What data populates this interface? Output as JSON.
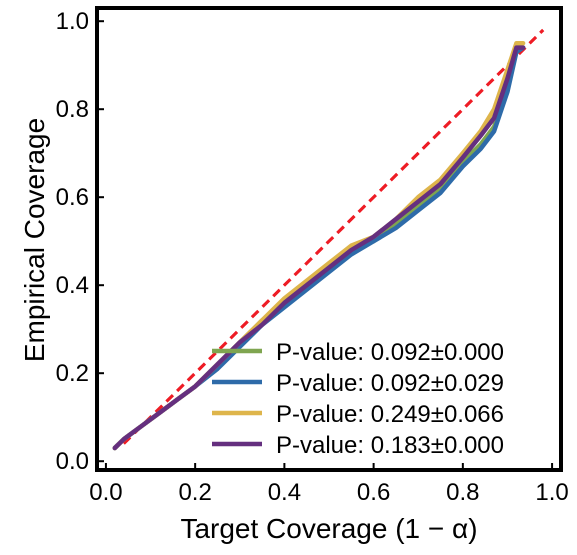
{
  "chart_data": {
    "type": "line",
    "title": "",
    "xlabel": "Target Coverage (1 − α)",
    "ylabel": "Empirical Coverage",
    "xlim": [
      -0.02,
      1.02
    ],
    "ylim": [
      -0.02,
      1.03
    ],
    "xticks": [
      "0.0",
      "0.2",
      "0.4",
      "0.6",
      "0.8",
      "1.0"
    ],
    "yticks": [
      "0.0",
      "0.2",
      "0.4",
      "0.6",
      "0.8",
      "1.0"
    ],
    "grid": false,
    "legend_position": "bottom-right",
    "reference_line": {
      "style": "dashed",
      "color": "#ee1c25",
      "x": [
        0.04,
        0.98
      ],
      "y": [
        0.04,
        0.98
      ]
    },
    "series": [
      {
        "name": "P-value: 0.092±0.000",
        "color": "#7fa550",
        "x": [
          0.02,
          0.04,
          0.08,
          0.12,
          0.16,
          0.2,
          0.25,
          0.3,
          0.35,
          0.4,
          0.45,
          0.5,
          0.55,
          0.6,
          0.65,
          0.7,
          0.75,
          0.8,
          0.84,
          0.87,
          0.9,
          0.92,
          0.935
        ],
        "y": [
          0.03,
          0.05,
          0.08,
          0.11,
          0.14,
          0.17,
          0.22,
          0.27,
          0.32,
          0.36,
          0.4,
          0.44,
          0.48,
          0.5,
          0.54,
          0.58,
          0.62,
          0.68,
          0.72,
          0.76,
          0.85,
          0.94,
          0.94
        ]
      },
      {
        "name": "P-value: 0.092±0.029",
        "color": "#2e6ba9",
        "x": [
          0.02,
          0.04,
          0.08,
          0.12,
          0.16,
          0.2,
          0.25,
          0.3,
          0.35,
          0.4,
          0.45,
          0.5,
          0.55,
          0.6,
          0.65,
          0.7,
          0.75,
          0.8,
          0.84,
          0.87,
          0.9,
          0.92,
          0.935
        ],
        "y": [
          0.03,
          0.05,
          0.08,
          0.11,
          0.14,
          0.17,
          0.21,
          0.26,
          0.31,
          0.35,
          0.39,
          0.43,
          0.47,
          0.5,
          0.53,
          0.57,
          0.61,
          0.67,
          0.71,
          0.75,
          0.84,
          0.93,
          0.94
        ]
      },
      {
        "name": "P-value: 0.249±0.066",
        "color": "#deb54b",
        "x": [
          0.02,
          0.04,
          0.08,
          0.12,
          0.16,
          0.2,
          0.25,
          0.3,
          0.35,
          0.4,
          0.45,
          0.5,
          0.55,
          0.6,
          0.65,
          0.7,
          0.75,
          0.8,
          0.84,
          0.87,
          0.9,
          0.92,
          0.935
        ],
        "y": [
          0.03,
          0.05,
          0.08,
          0.11,
          0.14,
          0.17,
          0.22,
          0.27,
          0.32,
          0.37,
          0.41,
          0.45,
          0.49,
          0.51,
          0.55,
          0.6,
          0.64,
          0.7,
          0.75,
          0.8,
          0.89,
          0.95,
          0.95
        ]
      },
      {
        "name": "P-value: 0.183±0.000",
        "color": "#652f7f",
        "x": [
          0.02,
          0.04,
          0.08,
          0.12,
          0.16,
          0.2,
          0.25,
          0.3,
          0.35,
          0.4,
          0.45,
          0.5,
          0.55,
          0.6,
          0.65,
          0.7,
          0.75,
          0.8,
          0.84,
          0.87,
          0.9,
          0.92,
          0.935
        ],
        "y": [
          0.03,
          0.05,
          0.08,
          0.11,
          0.14,
          0.17,
          0.22,
          0.27,
          0.31,
          0.36,
          0.4,
          0.44,
          0.48,
          0.51,
          0.55,
          0.59,
          0.63,
          0.69,
          0.74,
          0.78,
          0.87,
          0.94,
          0.94
        ]
      }
    ]
  }
}
